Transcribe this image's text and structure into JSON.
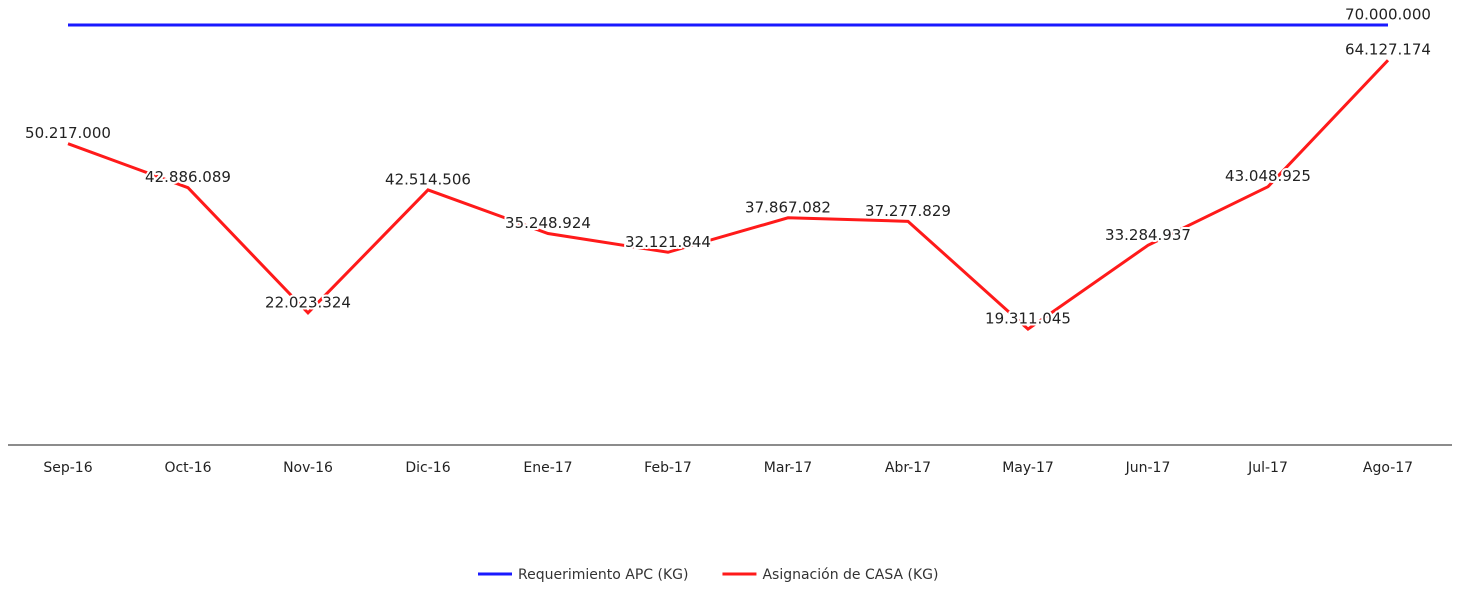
{
  "chart_data": {
    "type": "line",
    "categories": [
      "Sep-16",
      "Oct-16",
      "Nov-16",
      "Dic-16",
      "Ene-17",
      "Feb-17",
      "Mar-17",
      "Abr-17",
      "May-17",
      "Jun-17",
      "Jul-17",
      "Ago-17"
    ],
    "series": [
      {
        "name": "Requerimiento APC (KG)",
        "color": "#1a1aff",
        "values": [
          70000000,
          70000000,
          70000000,
          70000000,
          70000000,
          70000000,
          70000000,
          70000000,
          70000000,
          70000000,
          70000000,
          70000000
        ],
        "value_labels": [
          null,
          null,
          null,
          null,
          null,
          null,
          null,
          null,
          null,
          null,
          null,
          "70.000.000"
        ]
      },
      {
        "name": "Asignación de CASA (KG)",
        "color": "#ff1a1a",
        "values": [
          50217000,
          42886089,
          22023324,
          42514506,
          35248924,
          32121844,
          37867082,
          37277829,
          19311045,
          33284937,
          43048925,
          64127174
        ],
        "value_labels": [
          "50.217.000",
          "42.886.089",
          "22.023.324",
          "42.514.506",
          "35.248.924",
          "32.121.844",
          "37.867.082",
          "37.277.829",
          "19.311.045",
          "33.284.937",
          "43.048.925",
          "64.127.174"
        ]
      }
    ],
    "ylim": [
      0,
      72000000
    ],
    "legend": "bottom"
  }
}
